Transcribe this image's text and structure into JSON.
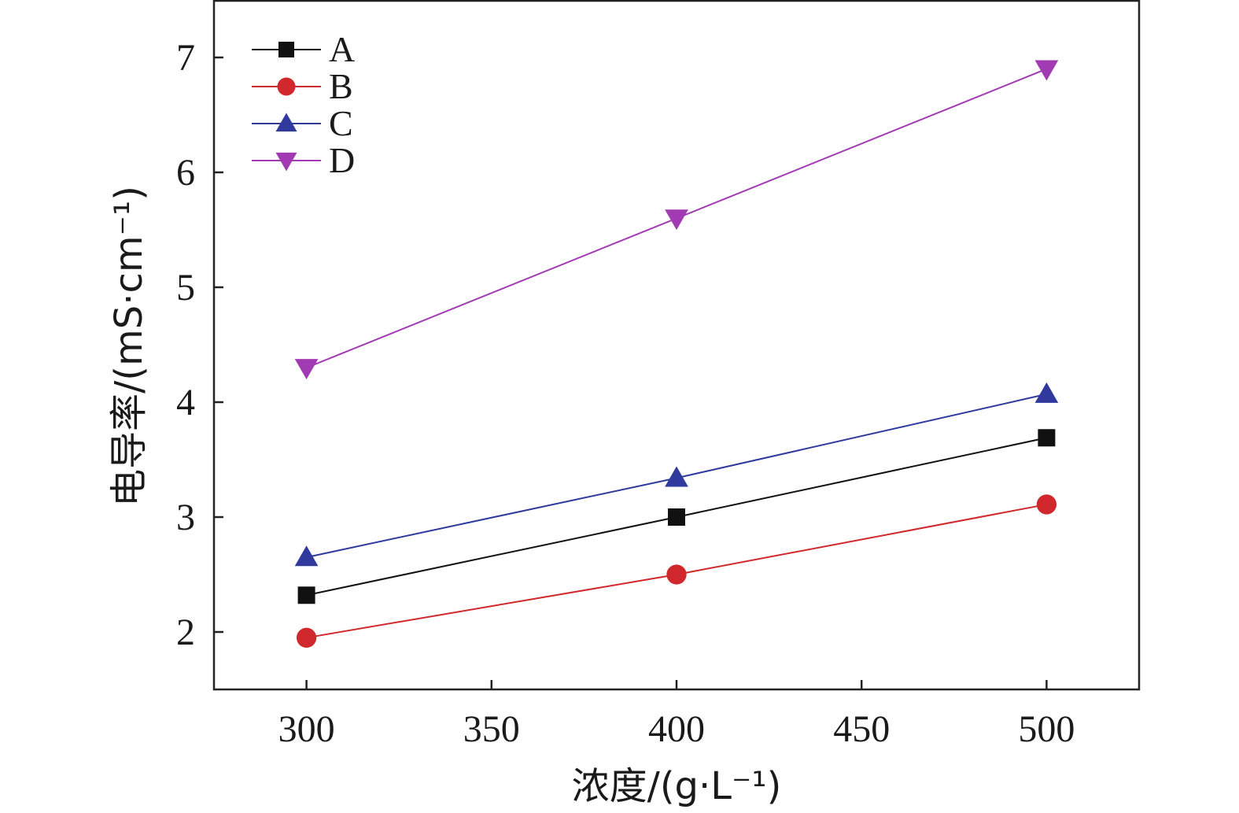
{
  "chart_data": {
    "type": "line",
    "xlabel": "浓度/(g·L⁻¹)",
    "ylabel": "电导率/(mS·cm⁻¹)",
    "x": [
      300,
      400,
      500
    ],
    "xlim": [
      275,
      525
    ],
    "ylim": [
      1.5,
      7.5
    ],
    "xticks": [
      300,
      350,
      400,
      450,
      500
    ],
    "yticks": [
      2,
      3,
      4,
      5,
      6,
      7
    ],
    "grid": false,
    "legend_position": "top-left",
    "series": [
      {
        "name": "A",
        "values": [
          2.32,
          3.0,
          3.69
        ],
        "color": "#111111",
        "marker": "square"
      },
      {
        "name": "B",
        "values": [
          1.95,
          2.5,
          3.11
        ],
        "color": "#d0282c",
        "marker": "circle"
      },
      {
        "name": "C",
        "values": [
          2.65,
          3.34,
          4.07
        ],
        "color": "#2f3a9c",
        "marker": "triangle-up"
      },
      {
        "name": "D",
        "values": [
          4.3,
          5.6,
          6.9
        ],
        "color": "#a23bb3",
        "marker": "triangle-down"
      }
    ]
  }
}
